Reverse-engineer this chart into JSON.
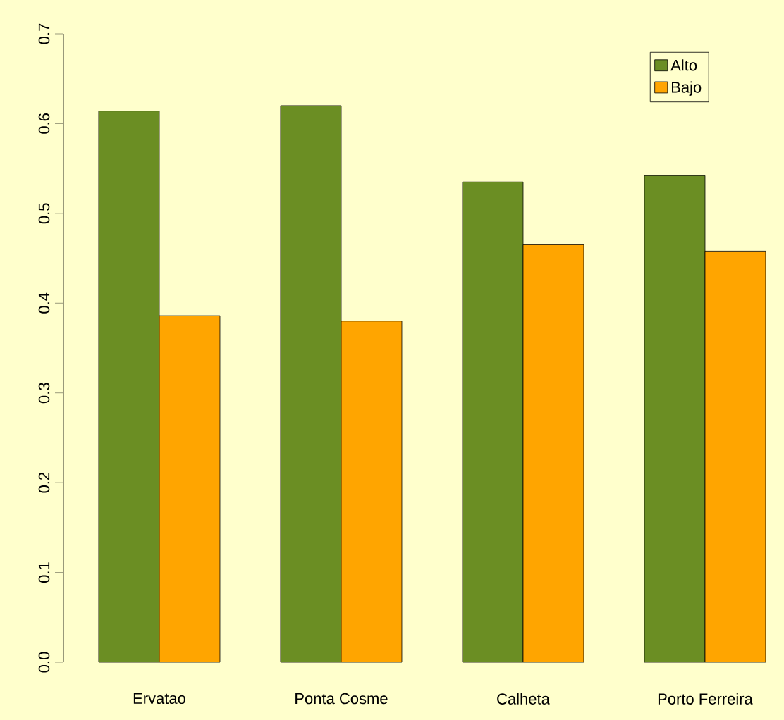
{
  "chart_data": {
    "type": "bar",
    "categories": [
      "Ervatao",
      "Ponta Cosme",
      "Calheta",
      "Porto Ferreira"
    ],
    "series": [
      {
        "name": "Alto",
        "color": "#6b8e23",
        "values": [
          0.614,
          0.62,
          0.535,
          0.542
        ]
      },
      {
        "name": "Bajo",
        "color": "#ffa500",
        "values": [
          0.386,
          0.38,
          0.465,
          0.458
        ]
      }
    ],
    "ylim": [
      0,
      0.7
    ],
    "yticks": [
      {
        "value": 0,
        "label": "0.0"
      },
      0.1,
      0.2,
      0.3,
      0.4,
      0.5,
      0.6,
      0.7
    ],
    "grid": false,
    "legend": "top right"
  }
}
